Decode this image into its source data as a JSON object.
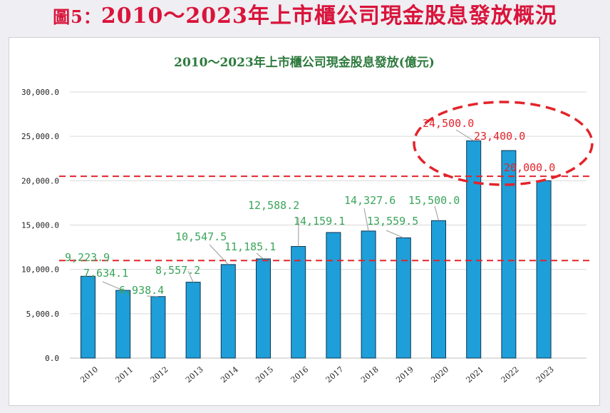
{
  "figure": {
    "label": "圖5：",
    "title": "2010～2023年上市櫃公司現金股息發放概況"
  },
  "chart_data": {
    "type": "bar",
    "title": "2010～2023年上市櫃公司現金股息發放(億元)",
    "categories": [
      "2010",
      "2011",
      "2012",
      "2013",
      "2014",
      "2015",
      "2016",
      "2017",
      "2018",
      "2019",
      "2020",
      "2021",
      "2022",
      "2023"
    ],
    "values": [
      9223.9,
      7634.1,
      6938.4,
      8557.2,
      10547.5,
      11185.1,
      12588.2,
      14159.1,
      14327.6,
      13559.5,
      15500.0,
      24500.0,
      23400.0,
      20000.0
    ],
    "value_labels": [
      "9,223.9",
      "7,634.1",
      "6,938.4",
      "8,557.2",
      "10,547.5",
      "11,185.1",
      "12,588.2",
      "14,159.1",
      "14,327.6",
      "13,559.5",
      "15,500.0",
      "24,500.0",
      "23,400.0",
      "20,000.0"
    ],
    "ylim": [
      0,
      30000
    ],
    "yticks": [
      0,
      5000,
      10000,
      15000,
      20000,
      25000,
      30000
    ],
    "ytick_labels": [
      "0.0",
      "5,000.0",
      "10,000.0",
      "15,000.0",
      "20,000.0",
      "25,000.0",
      "30,000.0"
    ],
    "reference_lines": [
      11000,
      20500
    ],
    "highlighted_years": [
      "2021",
      "2022",
      "2023"
    ],
    "colors": {
      "bar": "#1e9fd9",
      "bar_edge": "#0f3550",
      "label_normal": "#3aa55a",
      "label_highlight": "#e3242b",
      "reference_line": "#e3242b",
      "grid": "#d9d9d9"
    }
  }
}
